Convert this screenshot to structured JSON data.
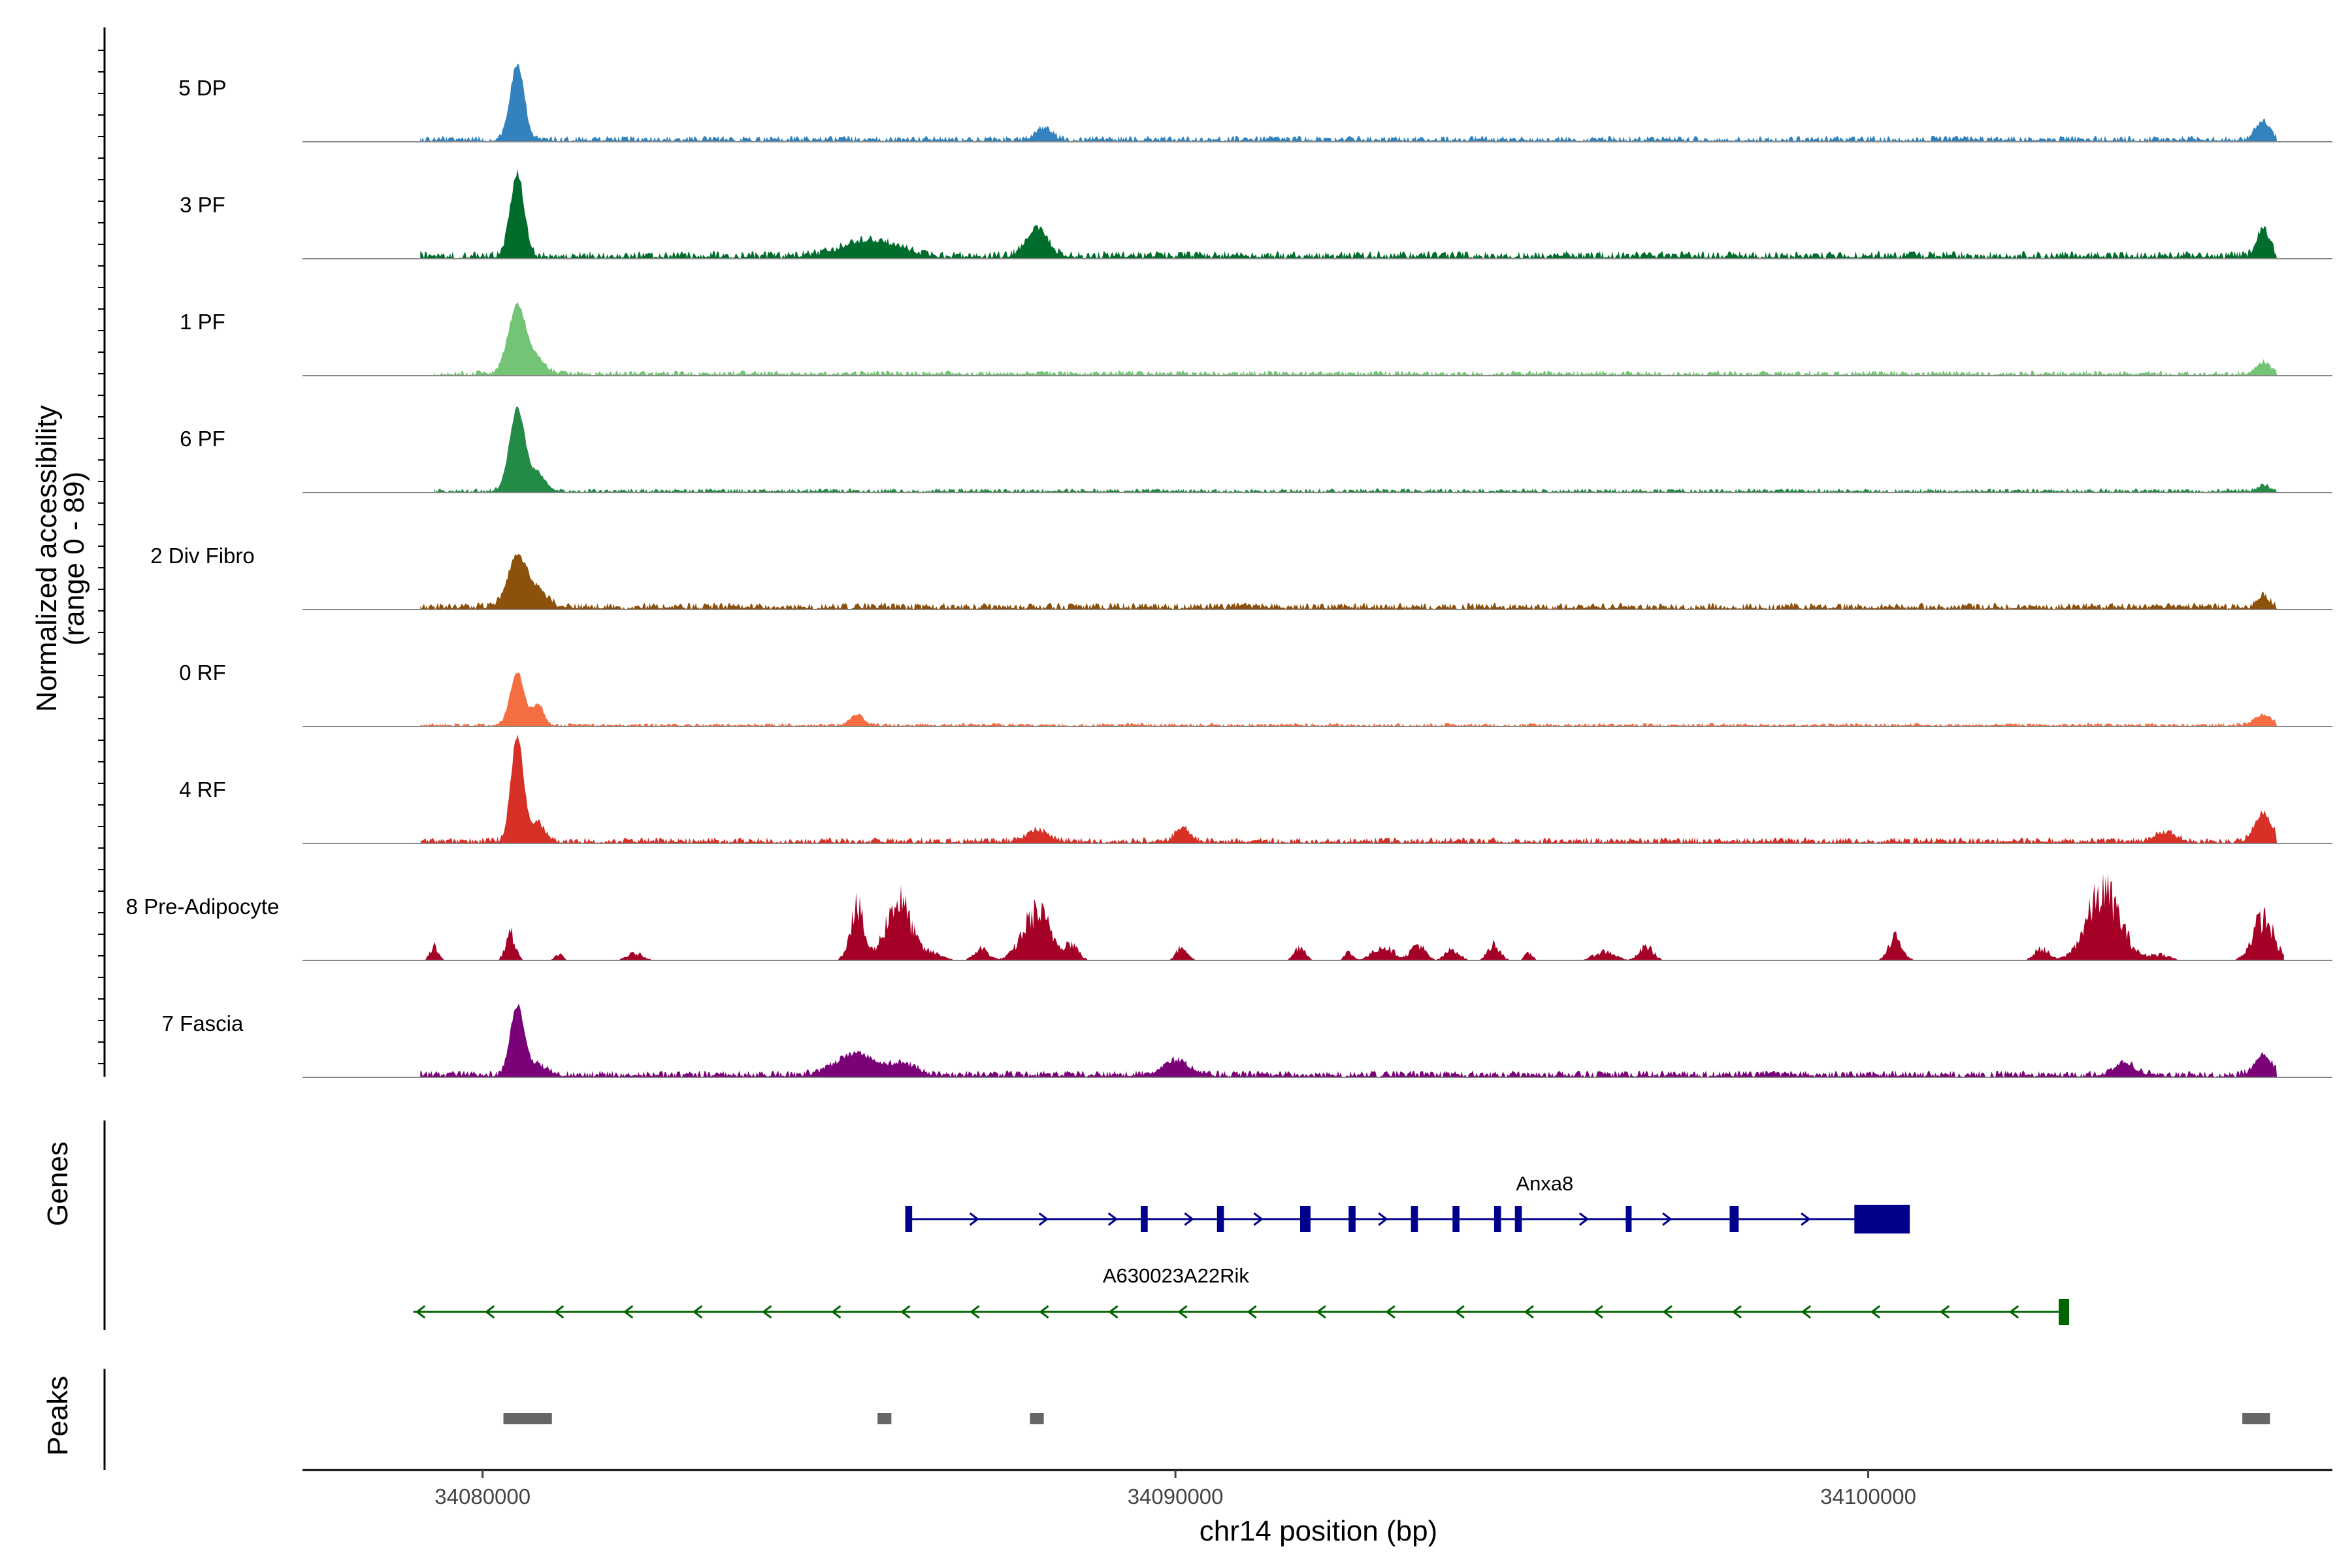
{
  "chart_data": {
    "type": "area",
    "title": "",
    "ylabel": "Normalized accessibility",
    "ylabel_range": "(range 0 - 89)",
    "y_range": [
      0,
      89
    ],
    "xlabel": "chr14 position (bp)",
    "x_range": [
      34077400,
      34106700
    ],
    "x_ticks": [
      34080000,
      34090000,
      34100000
    ],
    "x_tick_labels": [
      "34080000",
      "34090000",
      "34100000"
    ],
    "tracks": [
      {
        "name": "5 DP",
        "color": "#3182BD",
        "peaks": [
          [
            34080500,
            64,
            100
          ],
          [
            34088100,
            10,
            120
          ],
          [
            34105700,
            16,
            100
          ]
        ],
        "baseline": 3.5,
        "range": [
          34079100,
          34105900
        ]
      },
      {
        "name": "3 PF",
        "color": "#006D2C",
        "peaks": [
          [
            34080500,
            70,
            100
          ],
          [
            34085600,
            14,
            400
          ],
          [
            34088000,
            24,
            150
          ],
          [
            34105700,
            24,
            90
          ]
        ],
        "baseline": 4.5,
        "range": [
          34079100,
          34105900
        ]
      },
      {
        "name": "1 PF",
        "color": "#74C476",
        "peaks": [
          [
            34080500,
            58,
            130
          ],
          [
            34080800,
            12,
            120
          ],
          [
            34105700,
            10,
            90
          ]
        ],
        "baseline": 3,
        "range": [
          34079300,
          34105900
        ]
      },
      {
        "name": "6 PF",
        "color": "#238B45",
        "peaks": [
          [
            34080500,
            70,
            110
          ],
          [
            34080800,
            14,
            120
          ],
          [
            34105700,
            5,
            90
          ]
        ],
        "baseline": 2.5,
        "range": [
          34079300,
          34105900
        ]
      },
      {
        "name": "2 Div Fibro",
        "color": "#8C510A",
        "peaks": [
          [
            34080500,
            42,
            140
          ],
          [
            34080800,
            12,
            150
          ],
          [
            34105700,
            10,
            90
          ]
        ],
        "baseline": 4,
        "range": [
          34079100,
          34105900
        ]
      },
      {
        "name": "0 RF",
        "color": "#F46D43",
        "peaks": [
          [
            34080500,
            45,
            100
          ],
          [
            34080800,
            18,
            80
          ],
          [
            34085400,
            9,
            100
          ],
          [
            34105700,
            9,
            120
          ]
        ],
        "baseline": 2,
        "range": [
          34079100,
          34105900
        ]
      },
      {
        "name": "4 RF",
        "color": "#D73027",
        "peaks": [
          [
            34080500,
            89,
            90
          ],
          [
            34080800,
            16,
            100
          ],
          [
            34088000,
            10,
            150
          ],
          [
            34090100,
            12,
            100
          ],
          [
            34104300,
            8,
            150
          ],
          [
            34105700,
            24,
            120
          ]
        ],
        "baseline": 3.5,
        "range": [
          34079100,
          34105900
        ]
      },
      {
        "name": "8 Pre-Adipocyte",
        "color": "#A50026",
        "peaks": [
          [
            34079300,
            14,
            60
          ],
          [
            34080400,
            26,
            70
          ],
          [
            34081100,
            6,
            60
          ],
          [
            34082200,
            7,
            120
          ],
          [
            34085400,
            52,
            100
          ],
          [
            34086000,
            60,
            180
          ],
          [
            34086500,
            7,
            150
          ],
          [
            34087200,
            12,
            100
          ],
          [
            34088000,
            48,
            200
          ],
          [
            34088500,
            15,
            100
          ],
          [
            34090100,
            14,
            80
          ],
          [
            34091800,
            14,
            80
          ],
          [
            34092500,
            8,
            60
          ],
          [
            34093000,
            14,
            150
          ],
          [
            34093500,
            16,
            100
          ],
          [
            34094000,
            11,
            100
          ],
          [
            34094600,
            16,
            90
          ],
          [
            34095100,
            7,
            60
          ],
          [
            34096200,
            9,
            150
          ],
          [
            34096800,
            14,
            100
          ],
          [
            34100400,
            22,
            100
          ],
          [
            34102500,
            12,
            100
          ],
          [
            34103400,
            68,
            240
          ],
          [
            34104200,
            6,
            150
          ],
          [
            34105700,
            42,
            150
          ]
        ],
        "baseline": 0,
        "range": [
          34079000,
          34106000
        ]
      },
      {
        "name": "7 Fascia",
        "color": "#7A0177",
        "peaks": [
          [
            34080500,
            58,
            100
          ],
          [
            34080800,
            8,
            150
          ],
          [
            34085400,
            18,
            300
          ],
          [
            34086100,
            8,
            200
          ],
          [
            34090000,
            12,
            200
          ],
          [
            34103700,
            10,
            150
          ],
          [
            34105700,
            18,
            120
          ]
        ],
        "baseline": 4,
        "range": [
          34079100,
          34105900
        ]
      }
    ],
    "genes": [
      {
        "name": "Anxa8",
        "strand": "+",
        "color": "#00008B",
        "start": 34086100,
        "end": 34100600,
        "exons": [
          [
            34086100,
            34086200
          ],
          [
            34089500,
            34089600
          ],
          [
            34090600,
            34090700
          ],
          [
            34091800,
            34091950
          ],
          [
            34092500,
            34092600
          ],
          [
            34093400,
            34093500
          ],
          [
            34094000,
            34094100
          ],
          [
            34094600,
            34094700
          ],
          [
            34094900,
            34095000
          ],
          [
            34096500,
            34096550
          ],
          [
            34098000,
            34098130
          ],
          [
            34099800,
            34100600
          ]
        ],
        "arrows": [
          34087100,
          34088100,
          34089100,
          34090200,
          34091200,
          34093000,
          34095900,
          34097100,
          34099100
        ]
      },
      {
        "name": "A630023A22Rik",
        "strand": "-",
        "color": "#006400",
        "start": 34079000,
        "end": 34102900,
        "exons": [
          [
            34102750,
            34102900
          ]
        ]
      }
    ],
    "peaks_track": [
      [
        34080300,
        34081000
      ],
      [
        34085700,
        34085900
      ],
      [
        34087900,
        34088100
      ],
      [
        34105400,
        34105800
      ]
    ],
    "peaks_color": "#666666",
    "panels": [
      "Genes",
      "Peaks"
    ]
  }
}
